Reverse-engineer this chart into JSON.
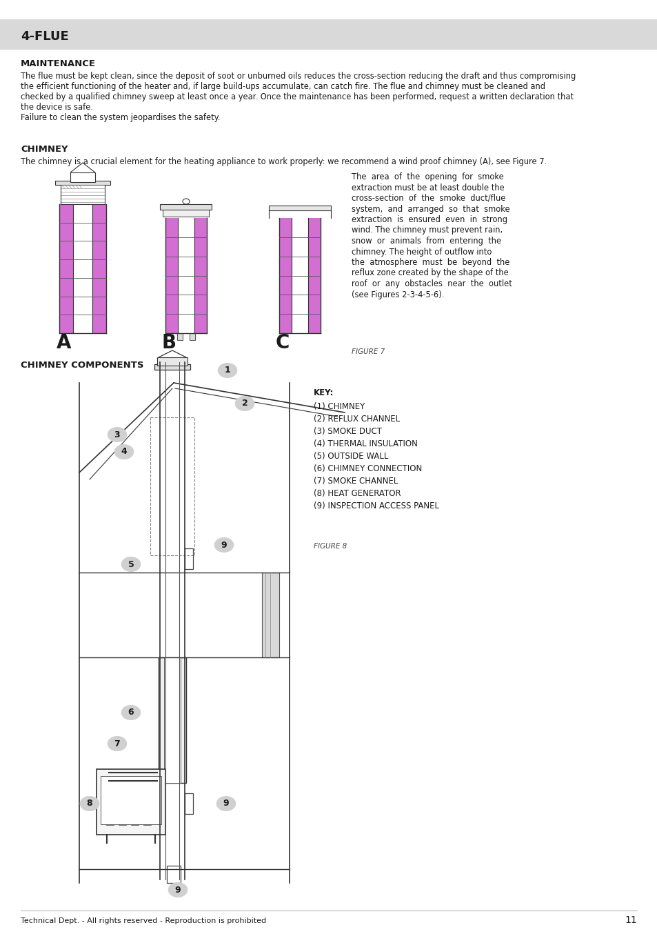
{
  "page_title": "4-FLUE",
  "header_bg": "#d9d9d9",
  "section1_heading": "MAINTENANCE",
  "section1_body_lines": [
    "The flue must be kept clean, since the deposit of soot or unburned oils reduces the cross-section reducing the draft and thus compromising",
    "the efficient functioning of the heater and, if large build-ups accumulate, can catch fire. The flue and chimney must be cleaned and",
    "checked by a qualified chimney sweep at least once a year. Once the maintenance has been performed, request a written declaration that",
    "the device is safe.",
    "Failure to clean the system jeopardises the safety."
  ],
  "section2_heading": "CHIMNEY",
  "section2_intro": "The chimney is a crucial element for the heating appliance to work properly: we recommend a wind proof chimney (A), see Figure 7.",
  "section2_side_lines": [
    "The  area  of  the  opening  for  smoke",
    "extraction must be at least double the",
    "cross-section  of  the  smoke  duct/flue",
    "system,  and  arranged  so  that  smoke",
    "extraction  is  ensured  even  in  strong",
    "wind. The chimney must prevent rain,",
    "snow  or  animals  from  entering  the",
    "chimney. The height of outflow into",
    "the  atmosphere  must  be  beyond  the",
    "reflux zone created by the shape of the",
    "roof  or  any  obstacles  near  the  outlet",
    "(see Figures 2-3-4-5-6)."
  ],
  "figure7_label": "FIGURE 7",
  "section3_heading": "CHIMNEY COMPONENTS",
  "key_title": "KEY:",
  "key_items": [
    "(1) CHIMNEY",
    "(2) REFLUX CHANNEL",
    "(3) SMOKE DUCT",
    "(4) THERMAL INSULATION",
    "(5) OUTSIDE WALL",
    "(6) CHIMNEY CONNECTION",
    "(7) SMOKE CHANNEL",
    "(8) HEAT GENERATOR",
    "(9) INSPECTION ACCESS PANEL"
  ],
  "figure8_label": "FIGURE 8",
  "footer_text": "Technical Dept. - All rights reserved - Reproduction is prohibited",
  "page_number": "11",
  "bg_color": "#ffffff",
  "text_color": "#1a1a1a",
  "purple_color": "#cc55cc",
  "label_bg": "#d0d0d0"
}
